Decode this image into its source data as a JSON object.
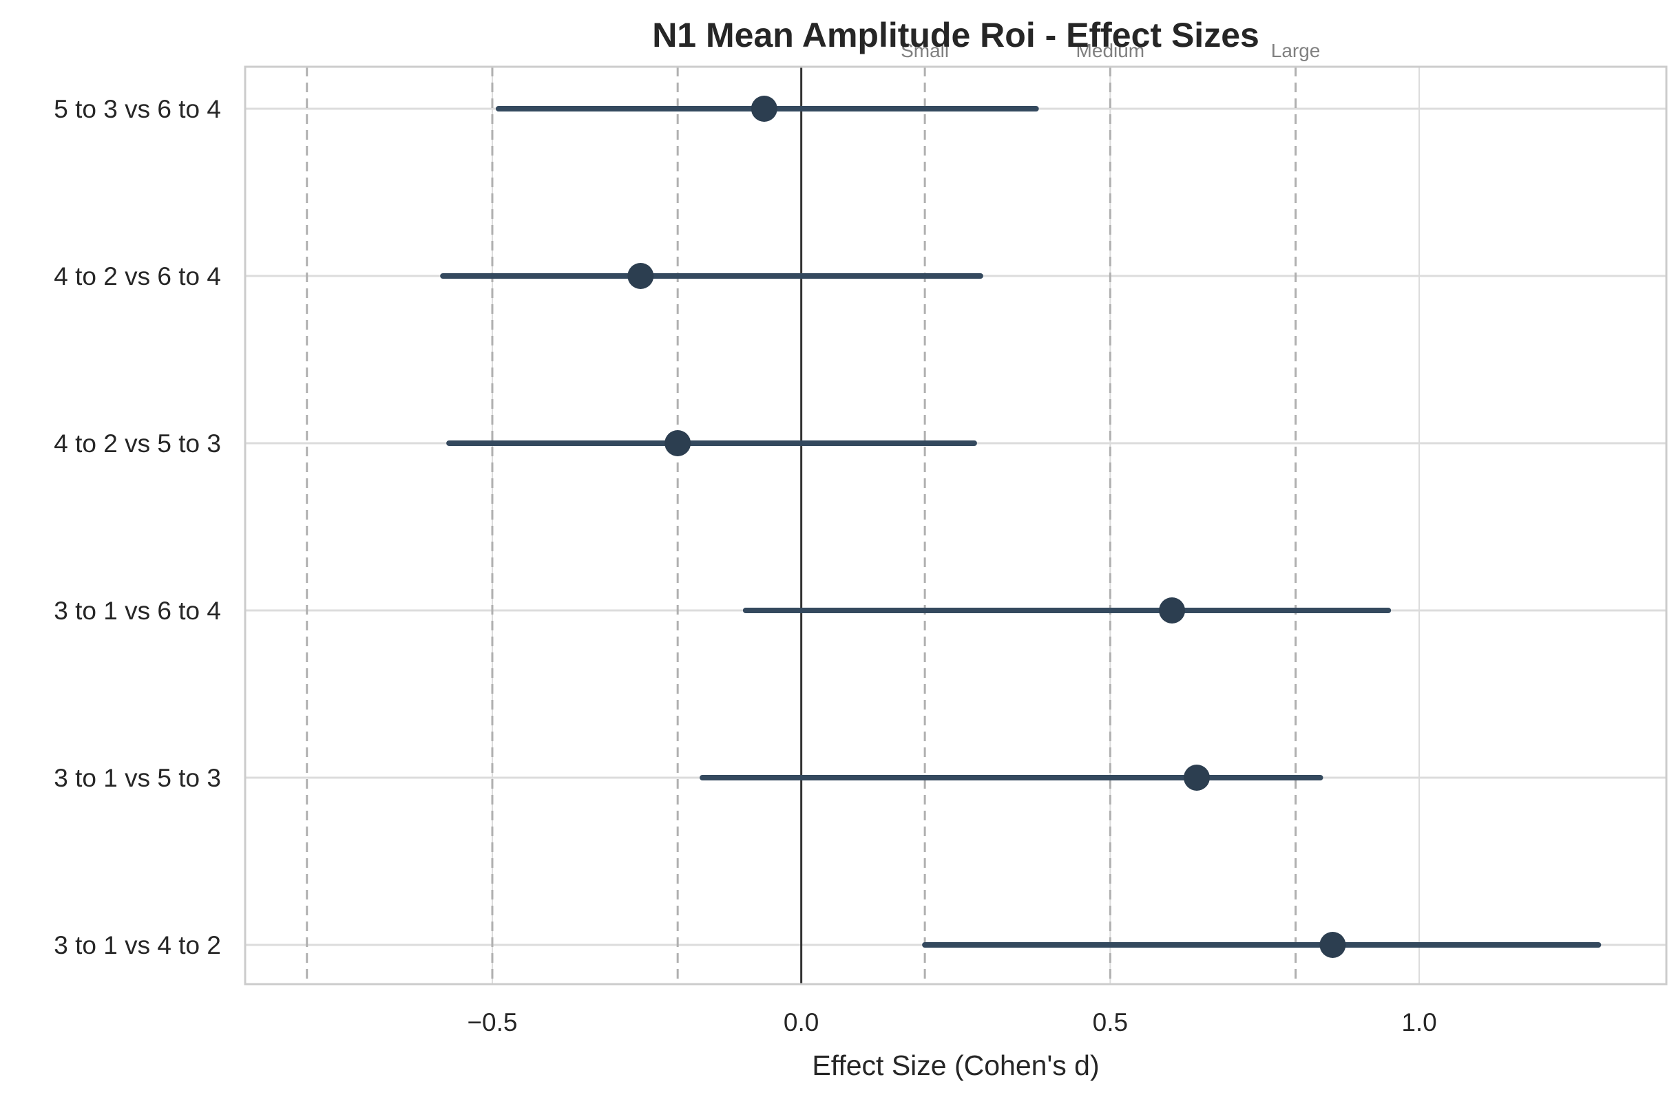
{
  "chart_data": {
    "type": "forest",
    "title": "N1 Mean Amplitude Roi - Effect Sizes",
    "xlabel": "Effect Size (Cohen's d)",
    "ylabel": "",
    "xlim": [
      -0.9,
      1.4
    ],
    "xticks": [
      -0.5,
      0.0,
      0.5,
      1.0
    ],
    "xtick_labels": [
      "−0.5",
      "0.0",
      "0.5",
      "1.0"
    ],
    "grid": true,
    "zero_line": 0.0,
    "thresholds": [
      {
        "value": 0.2,
        "label": "Small"
      },
      {
        "value": 0.5,
        "label": "Medium"
      },
      {
        "value": 0.8,
        "label": "Large"
      },
      {
        "value": -0.2,
        "label": ""
      },
      {
        "value": -0.5,
        "label": ""
      },
      {
        "value": -0.8,
        "label": ""
      }
    ],
    "comparisons": [
      {
        "label": "5 to 3 vs 6 to 4",
        "d": -0.06,
        "ci_low": -0.49,
        "ci_high": 0.38
      },
      {
        "label": "4 to 2 vs 6 to 4",
        "d": -0.26,
        "ci_low": -0.58,
        "ci_high": 0.29
      },
      {
        "label": "4 to 2 vs 5 to 3",
        "d": -0.2,
        "ci_low": -0.57,
        "ci_high": 0.28
      },
      {
        "label": "3 to 1 vs 6 to 4",
        "d": 0.6,
        "ci_low": -0.09,
        "ci_high": 0.95
      },
      {
        "label": "3 to 1 vs 5 to 3",
        "d": 0.64,
        "ci_low": -0.16,
        "ci_high": 0.84
      },
      {
        "label": "3 to 1 vs 4 to 2",
        "d": 0.86,
        "ci_low": 0.2,
        "ci_high": 1.29
      }
    ],
    "colors": {
      "marker": "#2c3e50",
      "ci_line": "#34495e",
      "zero_line": "#333333",
      "threshold_line": "#b0b0b0",
      "grid": "#dcdcdc",
      "frame": "#cccccc"
    }
  }
}
